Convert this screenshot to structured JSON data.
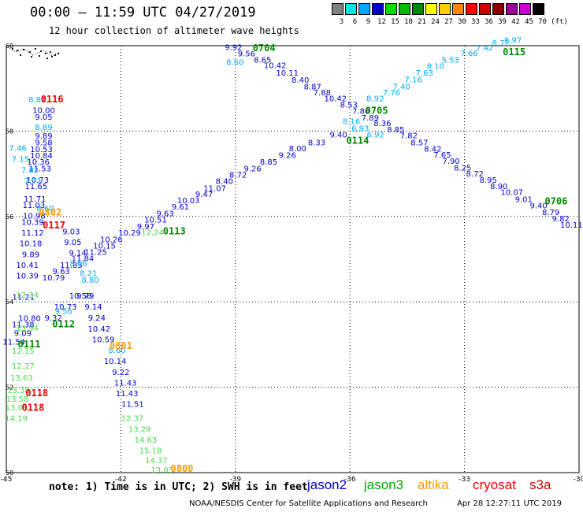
{
  "header": {
    "title": "00:00 – 11:59 UTC 04/27/2019",
    "subtitle": "12 hour collection of altimeter wave heights"
  },
  "color_scale": {
    "unit_label": "(ft)",
    "entries": [
      {
        "label": "3",
        "color": "#808080"
      },
      {
        "label": "6",
        "color": "#00e6e6"
      },
      {
        "label": "9",
        "color": "#00aaff"
      },
      {
        "label": "12",
        "color": "#0000cc"
      },
      {
        "label": "15",
        "color": "#00dd00"
      },
      {
        "label": "18",
        "color": "#00bb00"
      },
      {
        "label": "21",
        "color": "#008800"
      },
      {
        "label": "24",
        "color": "#ffff00"
      },
      {
        "label": "27",
        "color": "#ffcc00"
      },
      {
        "label": "30",
        "color": "#ff8800"
      },
      {
        "label": "33",
        "color": "#ff0000"
      },
      {
        "label": "36",
        "color": "#cc0000"
      },
      {
        "label": "39",
        "color": "#880000"
      },
      {
        "label": "42",
        "color": "#990099"
      },
      {
        "label": "45",
        "color": "#cc00cc"
      },
      {
        "label": "70",
        "color": "#000000"
      }
    ]
  },
  "map": {
    "lon_ticks": [
      "-45",
      "-42",
      "-39",
      "-36",
      "-33",
      "-30"
    ],
    "lat_ticks": [
      "60",
      "58",
      "56",
      "54",
      "52",
      "50"
    ],
    "lon_range": [
      -45,
      -30
    ],
    "lat_range": [
      50,
      60
    ]
  },
  "satellites": {
    "jason2": {
      "name": "jason2",
      "color": "#0000cc"
    },
    "jason3": {
      "name": "jason3",
      "color": "#00aa00"
    },
    "altika": {
      "name": "altika",
      "color": "#ff9900"
    },
    "cryosat": {
      "name": "cryosat",
      "color": "#ee0000"
    },
    "s3a": {
      "name": "s3a",
      "color": "#cc0000"
    }
  },
  "tracks": [
    {
      "name": "jason2 descending",
      "color": "#0000cc",
      "points": [
        {
          "lon": -39.05,
          "lat": 59.9,
          "text": "9.92"
        },
        {
          "lon": -38.71,
          "lat": 59.75,
          "text": "9.56"
        },
        {
          "lon": -38.29,
          "lat": 59.6,
          "text": "8.65"
        },
        {
          "lon": -37.96,
          "lat": 59.47,
          "text": "10.42"
        },
        {
          "lon": -37.64,
          "lat": 59.3,
          "text": "10.11"
        },
        {
          "lon": -37.3,
          "lat": 59.13,
          "text": "8.40"
        },
        {
          "lon": -36.98,
          "lat": 58.98,
          "text": "8.87"
        },
        {
          "lon": -36.73,
          "lat": 58.84,
          "text": "7.88"
        },
        {
          "lon": -36.38,
          "lat": 58.7,
          "text": "10.42"
        },
        {
          "lon": -36.03,
          "lat": 58.55,
          "text": "8.53"
        },
        {
          "lon": -35.71,
          "lat": 58.4,
          "text": "7.86"
        },
        {
          "lon": -35.47,
          "lat": 58.25,
          "text": "7.89"
        },
        {
          "lon": -35.15,
          "lat": 58.12,
          "text": "8.36"
        },
        {
          "lon": -34.8,
          "lat": 57.97,
          "text": "8.85"
        },
        {
          "lon": -34.46,
          "lat": 57.83,
          "text": "7.82"
        },
        {
          "lon": -34.18,
          "lat": 57.67,
          "text": "8.57"
        },
        {
          "lon": -33.83,
          "lat": 57.52,
          "text": "8.42"
        },
        {
          "lon": -33.58,
          "lat": 57.38,
          "text": "7.65"
        },
        {
          "lon": -33.35,
          "lat": 57.23,
          "text": "7.90"
        },
        {
          "lon": -33.05,
          "lat": 57.08,
          "text": "8.25"
        },
        {
          "lon": -32.73,
          "lat": 56.94,
          "text": "8.72"
        },
        {
          "lon": -32.38,
          "lat": 56.79,
          "text": "8.95"
        },
        {
          "lon": -32.1,
          "lat": 56.64,
          "text": "8.90"
        },
        {
          "lon": -31.76,
          "lat": 56.5,
          "text": "10.07"
        },
        {
          "lon": -31.45,
          "lat": 56.34,
          "text": "9.01"
        },
        {
          "lon": -31.06,
          "lat": 56.19,
          "text": "9.40"
        },
        {
          "lon": -30.74,
          "lat": 56.03,
          "text": "8.79"
        },
        {
          "lon": -30.48,
          "lat": 55.89,
          "text": "9.82"
        },
        {
          "lon": -30.2,
          "lat": 55.74,
          "text": "10.11"
        }
      ]
    },
    {
      "name": "jason2 ascending",
      "color": "#0000cc",
      "points": [
        {
          "lon": -36.3,
          "lat": 57.85,
          "text": "9.40"
        },
        {
          "lon": -36.87,
          "lat": 57.67,
          "text": "8.33"
        },
        {
          "lon": -37.37,
          "lat": 57.53,
          "text": "8.00"
        },
        {
          "lon": -37.64,
          "lat": 57.37,
          "text": "9.26"
        },
        {
          "lon": -38.13,
          "lat": 57.21,
          "text": "8.85"
        },
        {
          "lon": -38.55,
          "lat": 57.06,
          "text": "9.26"
        },
        {
          "lon": -38.93,
          "lat": 56.91,
          "text": "8.72"
        },
        {
          "lon": -39.29,
          "lat": 56.76,
          "text": "8.40"
        },
        {
          "lon": -39.54,
          "lat": 56.6,
          "text": "11.07"
        },
        {
          "lon": -39.82,
          "lat": 56.46,
          "text": "9.47"
        },
        {
          "lon": -40.23,
          "lat": 56.31,
          "text": "10.03"
        },
        {
          "lon": -40.44,
          "lat": 56.16,
          "text": "9.61"
        },
        {
          "lon": -40.84,
          "lat": 56.01,
          "text": "9.63"
        },
        {
          "lon": -41.09,
          "lat": 55.86,
          "text": "10.51"
        },
        {
          "lon": -41.35,
          "lat": 55.7,
          "text": "9.97"
        },
        {
          "lon": -41.77,
          "lat": 55.55,
          "text": "10.29"
        },
        {
          "lon": -42.25,
          "lat": 55.4,
          "text": "10.26"
        },
        {
          "lon": -42.43,
          "lat": 55.25,
          "text": "10.15"
        },
        {
          "lon": -42.66,
          "lat": 55.1,
          "text": "11.25"
        },
        {
          "lon": -43.0,
          "lat": 54.95,
          "text": "11.84"
        },
        {
          "lon": -43.3,
          "lat": 54.8,
          "text": "11.83"
        },
        {
          "lon": -43.56,
          "lat": 54.65,
          "text": "9.63"
        },
        {
          "lon": -43.76,
          "lat": 54.5,
          "text": "10.79"
        }
      ]
    },
    {
      "name": "jason2 west track",
      "color": "#0000cc",
      "points": [
        {
          "lon": -44.02,
          "lat": 58.42,
          "text": "10.00"
        },
        {
          "lon": -44.02,
          "lat": 58.27,
          "text": "9.05"
        },
        {
          "lon": -44.02,
          "lat": 57.82,
          "text": "9.89"
        },
        {
          "lon": -44.02,
          "lat": 57.67,
          "text": "9.58"
        },
        {
          "lon": -44.08,
          "lat": 57.51,
          "text": "10.53"
        },
        {
          "lon": -44.08,
          "lat": 57.36,
          "text": "10.84"
        },
        {
          "lon": -44.16,
          "lat": 57.21,
          "text": "10.36"
        },
        {
          "lon": -44.12,
          "lat": 57.06,
          "text": "11.53"
        },
        {
          "lon": -44.18,
          "lat": 56.79,
          "text": "10.73"
        },
        {
          "lon": -44.22,
          "lat": 56.64,
          "text": "11.65"
        },
        {
          "lon": -44.25,
          "lat": 56.35,
          "text": "11.71"
        },
        {
          "lon": -44.28,
          "lat": 56.2,
          "text": "11.03"
        },
        {
          "lon": -44.27,
          "lat": 55.95,
          "text": "10.98"
        },
        {
          "lon": -44.31,
          "lat": 55.8,
          "text": "10.39"
        },
        {
          "lon": -44.31,
          "lat": 55.55,
          "text": "11.12"
        },
        {
          "lon": -44.36,
          "lat": 55.3,
          "text": "10.18"
        },
        {
          "lon": -44.36,
          "lat": 55.05,
          "text": "9.89"
        },
        {
          "lon": -44.45,
          "lat": 54.8,
          "text": "10.41"
        },
        {
          "lon": -44.45,
          "lat": 54.55,
          "text": "10.39"
        },
        {
          "lon": -44.55,
          "lat": 54.05,
          "text": "11.21"
        },
        {
          "lon": -44.39,
          "lat": 53.55,
          "text": "10.80"
        },
        {
          "lon": -44.56,
          "lat": 53.4,
          "text": "11.38"
        },
        {
          "lon": -44.57,
          "lat": 53.2,
          "text": "9.09"
        },
        {
          "lon": -44.8,
          "lat": 53.0,
          "text": "11.54"
        }
      ]
    },
    {
      "name": "jason2 central",
      "color": "#0000cc",
      "points": [
        {
          "lon": -43.3,
          "lat": 55.58,
          "text": "9.03"
        },
        {
          "lon": -43.26,
          "lat": 55.33,
          "text": "9.05"
        },
        {
          "lon": -43.13,
          "lat": 55.08,
          "text": "9.14"
        },
        {
          "lon": -43.06,
          "lat": 54.08,
          "text": "10.58"
        },
        {
          "lon": -43.45,
          "lat": 53.82,
          "text": "10.73"
        },
        {
          "lon": -43.77,
          "lat": 53.56,
          "text": "9.32"
        },
        {
          "lon": -42.93,
          "lat": 54.08,
          "text": "9.79"
        },
        {
          "lon": -42.72,
          "lat": 53.82,
          "text": "9.14"
        },
        {
          "lon": -42.63,
          "lat": 53.56,
          "text": "9.24"
        },
        {
          "lon": -42.57,
          "lat": 53.3,
          "text": "10.42"
        },
        {
          "lon": -42.46,
          "lat": 53.05,
          "text": "10.59"
        },
        {
          "lon": -42.15,
          "lat": 52.55,
          "text": "10.14"
        },
        {
          "lon": -42.0,
          "lat": 52.29,
          "text": "9.22"
        },
        {
          "lon": -41.88,
          "lat": 52.04,
          "text": "11.43"
        },
        {
          "lon": -41.84,
          "lat": 51.79,
          "text": "11.43"
        },
        {
          "lon": -41.69,
          "lat": 51.54,
          "text": "11.51"
        }
      ]
    },
    {
      "name": "s3a / sentinel track",
      "color": "#00aaff",
      "points": [
        {
          "lon": -44.19,
          "lat": 58.67,
          "text": "8.81"
        },
        {
          "lon": -44.02,
          "lat": 58.03,
          "text": "8.89"
        },
        {
          "lon": -44.7,
          "lat": 57.54,
          "text": "7.46"
        },
        {
          "lon": -44.63,
          "lat": 57.28,
          "text": "7.15"
        },
        {
          "lon": -44.38,
          "lat": 57.02,
          "text": "7.82"
        },
        {
          "lon": -44.3,
          "lat": 56.77,
          "text": "7.71"
        },
        {
          "lon": -43.98,
          "lat": 56.13,
          "text": "8.60"
        },
        {
          "lon": -43.11,
          "lat": 54.83,
          "text": "8.66"
        },
        {
          "lon": -42.85,
          "lat": 54.6,
          "text": "8.21"
        },
        {
          "lon": -42.8,
          "lat": 54.45,
          "text": "8.80"
        },
        {
          "lon": -43.5,
          "lat": 53.72,
          "text": "9.56"
        },
        {
          "lon": -42.1,
          "lat": 52.8,
          "text": "8.60"
        },
        {
          "lon": -39.01,
          "lat": 59.55,
          "text": "8.60"
        },
        {
          "lon": -35.34,
          "lat": 58.7,
          "text": "8.92"
        },
        {
          "lon": -34.91,
          "lat": 58.84,
          "text": "7.76"
        },
        {
          "lon": -34.65,
          "lat": 58.98,
          "text": "7.40"
        },
        {
          "lon": -34.34,
          "lat": 59.14,
          "text": "7.16"
        },
        {
          "lon": -34.05,
          "lat": 59.3,
          "text": "7.63"
        },
        {
          "lon": -33.76,
          "lat": 59.46,
          "text": "8.10"
        },
        {
          "lon": -33.37,
          "lat": 59.6,
          "text": "5.53"
        },
        {
          "lon": -32.88,
          "lat": 59.76,
          "text": "7.66"
        },
        {
          "lon": -32.47,
          "lat": 59.89,
          "text": "7.42"
        },
        {
          "lon": -32.05,
          "lat": 60.0,
          "text": "8.72"
        },
        {
          "lon": -31.73,
          "lat": 60.06,
          "text": "8.97"
        },
        {
          "lon": -35.96,
          "lat": 58.16,
          "text": "8.16"
        },
        {
          "lon": -35.73,
          "lat": 58.0,
          "text": "6.93"
        },
        {
          "lon": -35.33,
          "lat": 57.85,
          "text": "6.92"
        }
      ]
    },
    {
      "name": "jason3 track",
      "color": "#44dd44",
      "points": [
        {
          "lon": -41.17,
          "lat": 55.56,
          "text": "12.24"
        },
        {
          "lon": -44.45,
          "lat": 54.1,
          "text": "12.34"
        },
        {
          "lon": -44.45,
          "lat": 53.32,
          "text": "13.94"
        },
        {
          "lon": -44.56,
          "lat": 52.79,
          "text": "12.15"
        },
        {
          "lon": -44.56,
          "lat": 52.44,
          "text": "12.27"
        },
        {
          "lon": -44.6,
          "lat": 52.16,
          "text": "13.63"
        },
        {
          "lon": -44.68,
          "lat": 51.86,
          "text": "13.38"
        },
        {
          "lon": -44.71,
          "lat": 51.66,
          "text": "13.58"
        },
        {
          "lon": -44.73,
          "lat": 51.46,
          "text": "13.03"
        },
        {
          "lon": -44.74,
          "lat": 51.21,
          "text": "14.19"
        },
        {
          "lon": -41.7,
          "lat": 51.21,
          "text": "12.37"
        },
        {
          "lon": -41.51,
          "lat": 50.95,
          "text": "13.29"
        },
        {
          "lon": -41.35,
          "lat": 50.7,
          "text": "14.63"
        },
        {
          "lon": -41.22,
          "lat": 50.45,
          "text": "15.18"
        },
        {
          "lon": -41.07,
          "lat": 50.22,
          "text": "14.37"
        },
        {
          "lon": -40.92,
          "lat": 50.0,
          "text": "13.03"
        }
      ]
    }
  ],
  "orbit_labels": [
    {
      "text": "0116",
      "lon": -43.8,
      "lat": 58.67,
      "color": "#ee0000"
    },
    {
      "text": "0704",
      "lon": -38.25,
      "lat": 59.87,
      "color": "#008800"
    },
    {
      "text": "0115",
      "lon": -31.7,
      "lat": 59.78,
      "color": "#008800"
    },
    {
      "text": "0705",
      "lon": -35.3,
      "lat": 58.4,
      "color": "#008800"
    },
    {
      "text": "0114",
      "lon": -35.8,
      "lat": 57.7,
      "color": "#008800"
    },
    {
      "text": "0706",
      "lon": -30.6,
      "lat": 56.28,
      "color": "#008800"
    },
    {
      "text": "0802",
      "lon": -43.85,
      "lat": 56.02,
      "color": "#ff9900"
    },
    {
      "text": "0117",
      "lon": -43.75,
      "lat": 55.72,
      "color": "#ee0000"
    },
    {
      "text": "0113",
      "lon": -40.6,
      "lat": 55.58,
      "color": "#008800"
    },
    {
      "text": "0112",
      "lon": -43.5,
      "lat": 53.4,
      "color": "#008800"
    },
    {
      "text": "0111",
      "lon": -44.4,
      "lat": 52.93,
      "color": "#008800"
    },
    {
      "text": "0801",
      "lon": -42.0,
      "lat": 52.9,
      "color": "#ff9900"
    },
    {
      "text": "0118",
      "lon": -44.2,
      "lat": 51.79,
      "color": "#ee0000"
    },
    {
      "text": "0118",
      "lon": -44.3,
      "lat": 51.45,
      "color": "#ee0000"
    },
    {
      "text": "0800",
      "lon": -40.4,
      "lat": 50.02,
      "color": "#ff9900"
    }
  ],
  "footer": {
    "note": "note: 1) Time is in UTC; 2) SWH is in feet",
    "credit": "NOAA/NESDIS Center for Satellite Applications and Research",
    "timestamp": "Apr 28 12:27:11 UTC 2019"
  }
}
